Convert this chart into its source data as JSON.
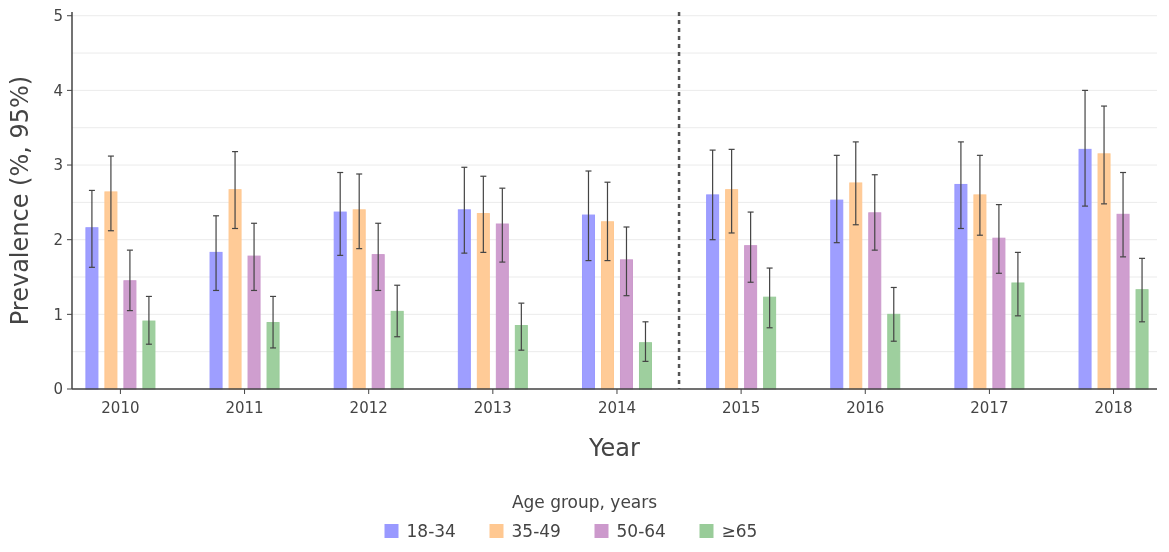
{
  "chart_data": {
    "type": "bar",
    "xlabel": "Year",
    "ylabel": "Prevalence (%, 95%)",
    "legend_title": "Age group, years",
    "x": [
      2010,
      2011,
      2012,
      2013,
      2014,
      2015,
      2016,
      2017,
      2018
    ],
    "xlim": [
      2009.61,
      2018.35
    ],
    "xticks": [
      2010,
      2011,
      2012,
      2013,
      2014,
      2015,
      2016,
      2017,
      2018
    ],
    "ylim": [
      0,
      5.05
    ],
    "yticks": [
      0,
      {
        "value": 0.5,
        "label": null
      },
      1,
      {
        "value": 1.5,
        "label": null
      },
      2,
      {
        "value": 2.5,
        "label": null
      },
      3,
      {
        "value": 3.5,
        "label": null
      },
      4,
      {
        "value": 4.5,
        "label": null
      },
      5
    ],
    "grid": "y",
    "legend": "bottom",
    "ref_lines": [
      {
        "axis": "x",
        "value": 2014.5,
        "line_style": "dotted",
        "color": "#555555"
      }
    ],
    "series": [
      {
        "name": "18-34",
        "color": "#9999ff",
        "values": [
          2.16,
          1.83,
          2.37,
          2.4,
          2.33,
          2.6,
          2.53,
          2.74,
          3.21
        ],
        "errors": [
          [
            1.63,
            2.66
          ],
          [
            1.32,
            2.32
          ],
          [
            1.79,
            2.9
          ],
          [
            1.82,
            2.97
          ],
          [
            1.72,
            2.92
          ],
          [
            2.0,
            3.2
          ],
          [
            1.96,
            3.13
          ],
          [
            2.15,
            3.31
          ],
          [
            2.45,
            4.0
          ]
        ]
      },
      {
        "name": "35-49",
        "color": "#ffc891",
        "values": [
          2.64,
          2.67,
          2.4,
          2.35,
          2.24,
          2.67,
          2.76,
          2.6,
          3.15
        ],
        "errors": [
          [
            2.12,
            3.12
          ],
          [
            2.15,
            3.18
          ],
          [
            1.88,
            2.88
          ],
          [
            1.83,
            2.85
          ],
          [
            1.72,
            2.77
          ],
          [
            2.09,
            3.21
          ],
          [
            2.2,
            3.31
          ],
          [
            2.06,
            3.13
          ],
          [
            2.48,
            3.79
          ]
        ]
      },
      {
        "name": "50-64",
        "color": "#cc99cc",
        "values": [
          1.45,
          1.78,
          1.8,
          2.21,
          1.73,
          1.92,
          2.36,
          2.02,
          2.34
        ],
        "errors": [
          [
            1.05,
            1.86
          ],
          [
            1.32,
            2.22
          ],
          [
            1.32,
            2.22
          ],
          [
            1.7,
            2.69
          ],
          [
            1.25,
            2.17
          ],
          [
            1.43,
            2.37
          ],
          [
            1.86,
            2.87
          ],
          [
            1.55,
            2.47
          ],
          [
            1.77,
            2.9
          ]
        ]
      },
      {
        "name": "≥65",
        "color": "#99cc99",
        "values": [
          0.91,
          0.89,
          1.04,
          0.85,
          0.62,
          1.23,
          1.0,
          1.42,
          1.33
        ],
        "errors": [
          [
            0.6,
            1.24
          ],
          [
            0.55,
            1.24
          ],
          [
            0.7,
            1.39
          ],
          [
            0.52,
            1.15
          ],
          [
            0.37,
            0.9
          ],
          [
            0.82,
            1.62
          ],
          [
            0.64,
            1.36
          ],
          [
            0.98,
            1.83
          ],
          [
            0.9,
            1.75
          ]
        ]
      }
    ]
  }
}
